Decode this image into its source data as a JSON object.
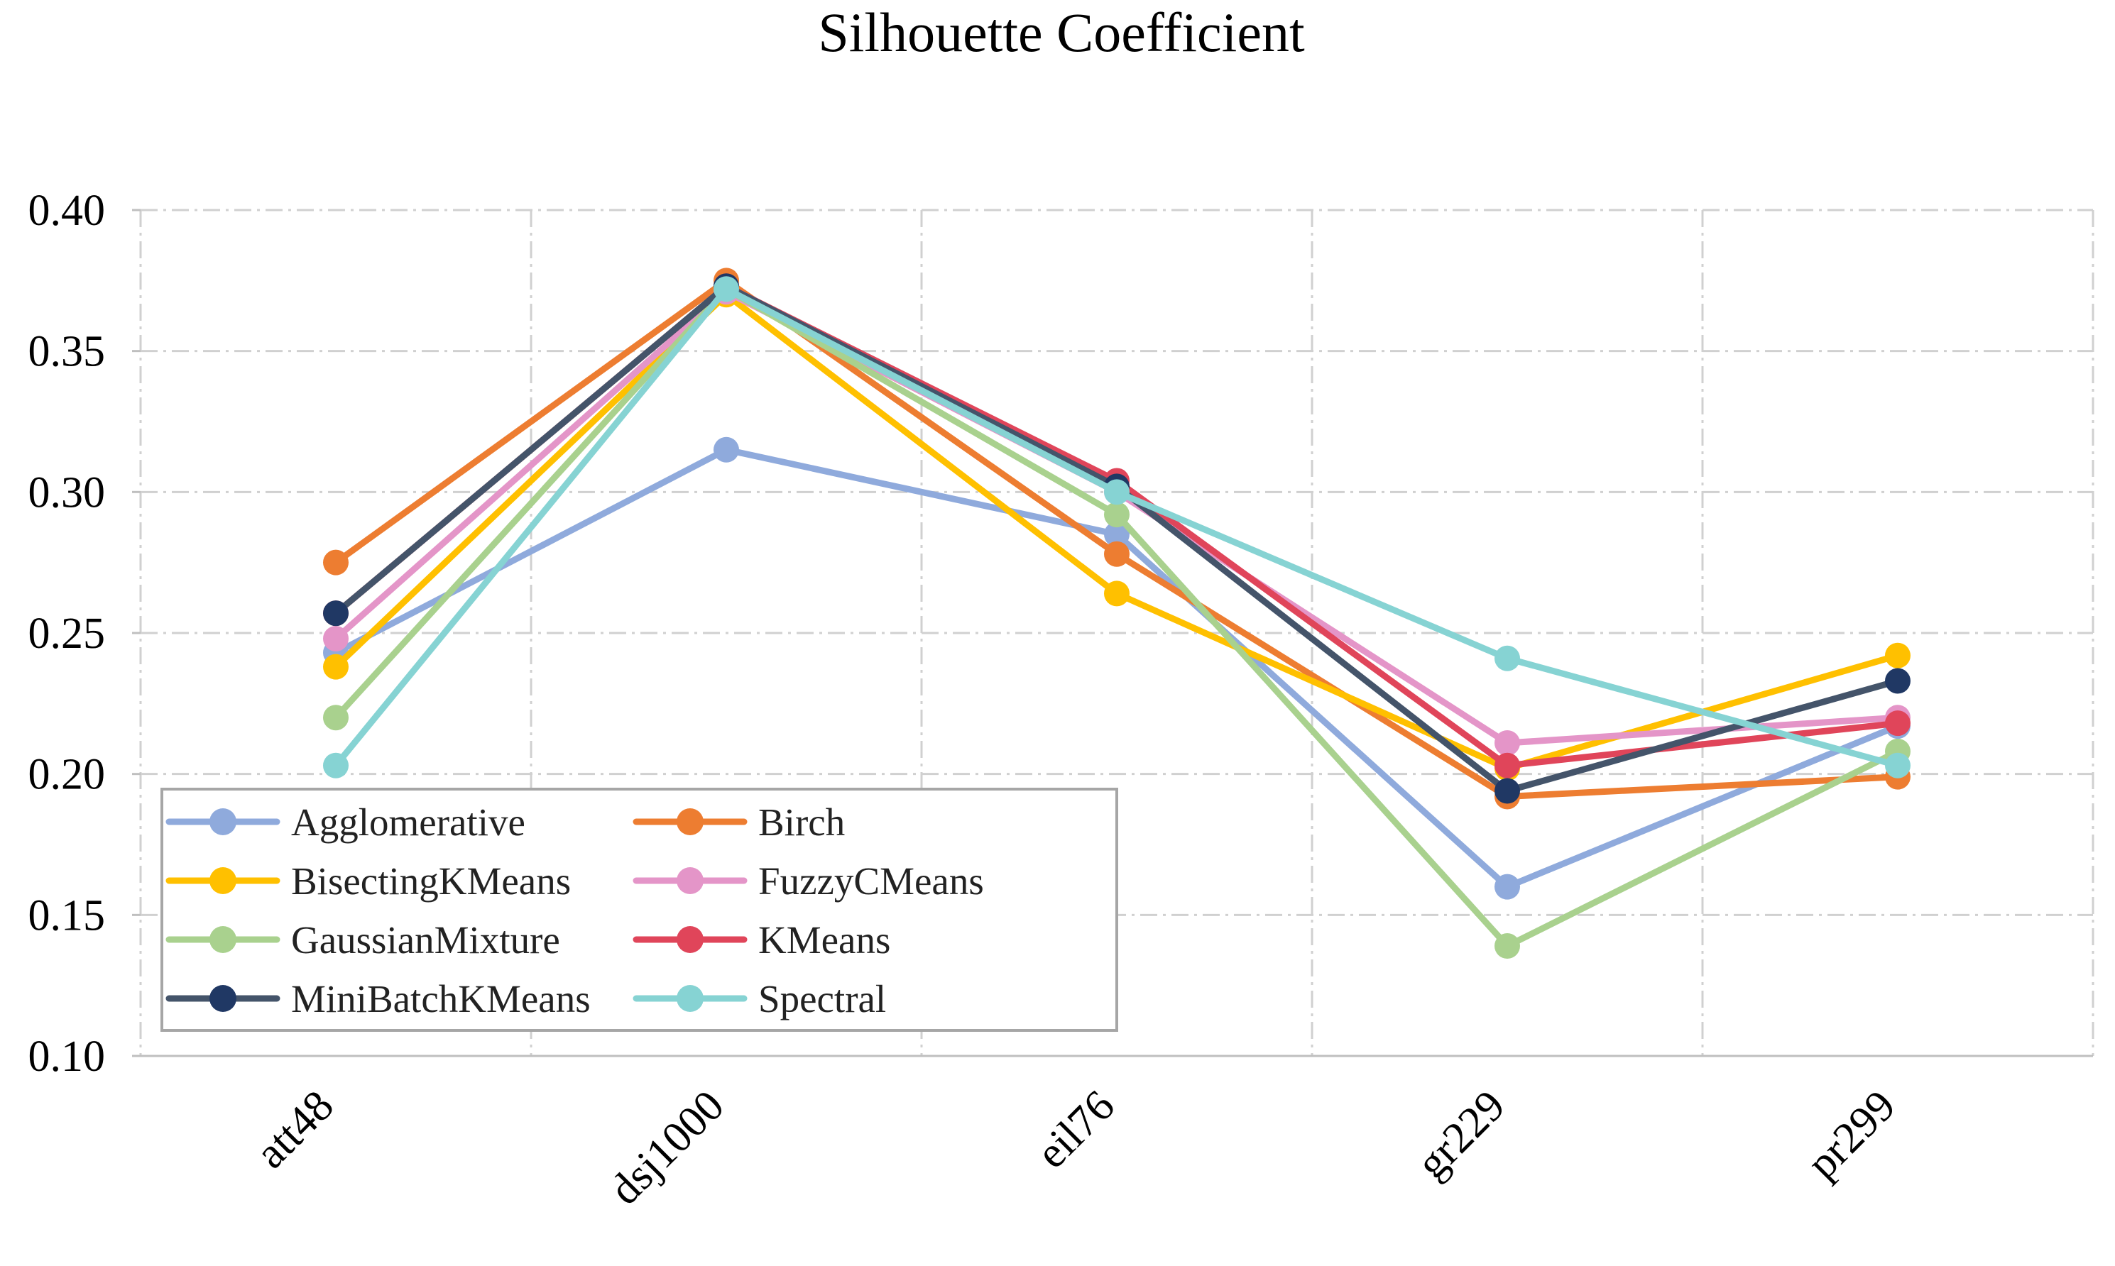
{
  "chart_data": {
    "type": "line",
    "title": "Silhouette Coefficient",
    "xlabel": "",
    "ylabel": "",
    "categories": [
      "att48",
      "dsj1000",
      "eil76",
      "gr229",
      "pr299"
    ],
    "ylim": [
      0.1,
      0.4
    ],
    "yticks": [
      "0.10",
      "0.15",
      "0.20",
      "0.25",
      "0.30",
      "0.35",
      "0.40"
    ],
    "grid": true,
    "legend_position": "bottom-left",
    "legend_columns": 2,
    "series": [
      {
        "name": "Agglomerative",
        "color": "#8FAADC",
        "values": [
          0.243,
          0.315,
          0.285,
          0.16,
          0.217
        ]
      },
      {
        "name": "Birch",
        "color": "#ED7D31",
        "values": [
          0.275,
          0.375,
          0.278,
          0.192,
          0.199
        ]
      },
      {
        "name": "BisectingKMeans",
        "color": "#FFC000",
        "values": [
          0.238,
          0.37,
          0.264,
          0.202,
          0.242
        ]
      },
      {
        "name": "FuzzyCMeans",
        "color": "#E495C8",
        "values": [
          0.248,
          0.371,
          0.3,
          0.211,
          0.22
        ]
      },
      {
        "name": "GaussianMixture",
        "color": "#A9D18E",
        "values": [
          0.22,
          0.372,
          0.292,
          0.139,
          0.208
        ]
      },
      {
        "name": "KMeans",
        "color": "#E0455A",
        "values": [
          0.257,
          0.373,
          0.304,
          0.203,
          0.218
        ]
      },
      {
        "name": "MiniBatchKMeans",
        "color": "#203864",
        "line_color": "#44546A",
        "values": [
          0.257,
          0.373,
          0.302,
          0.194,
          0.233
        ]
      },
      {
        "name": "Spectral",
        "color": "#86D3D3",
        "values": [
          0.203,
          0.372,
          0.3,
          0.241,
          0.203
        ]
      }
    ]
  }
}
